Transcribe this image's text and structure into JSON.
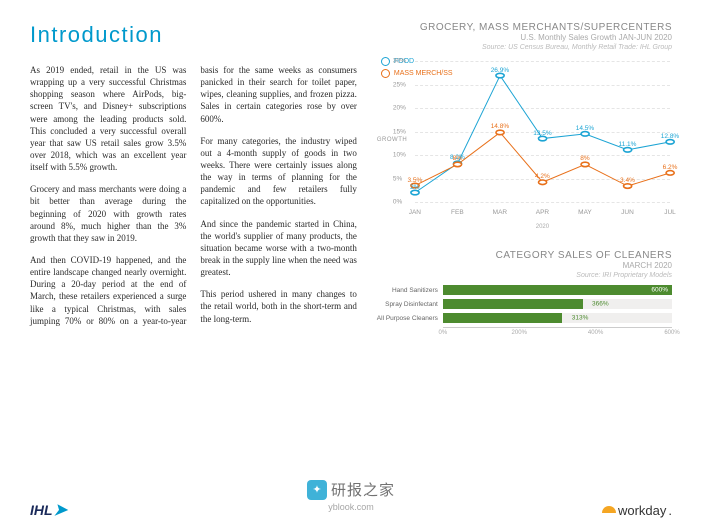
{
  "title": "Introduction",
  "paragraphs": [
    "As 2019 ended, retail in the US was wrapping up a very successful Christmas shopping season where AirPods, big-screen TV's, and Disney+ subscriptions were among the leading products sold. This concluded a very successful overall year that saw US retail sales grow 3.5% over 2018, which was an excellent year itself with 5.5% growth.",
    "Grocery and mass merchants were doing a bit better than average during the beginning of 2020 with growth rates around 8%, much higher than the 3% growth that they saw in 2019.",
    "And then COVID-19 happened, and the entire landscape changed nearly overnight. During a 20-day period at the end of March, these retailers experienced a surge like a typical Christmas, with sales jumping 70% or 80% on a year-to-year basis for the same weeks as consumers panicked in their search for toilet paper, wipes, cleaning supplies, and frozen pizza. Sales in certain categories rose by over 600%.",
    "For many categories, the industry wiped out a 4-month supply of goods in two weeks. There were certainly issues along the way in terms of planning for the pandemic and few retailers fully capitalized on the opportunities.",
    "And since the pandemic started in China, the world's supplier of many products, the situation became worse with a two-month break in the supply line when the need was greatest.",
    "This period ushered in many changes to the retail world, both in the short-term and the long-term."
  ],
  "chart1": {
    "title": "GROCERY, MASS MERCHANTS/SUPERCENTERS",
    "subtitle": "U.S. Monthly Sales Growth JAN-JUN 2020",
    "source": "Source: US Census Bureau, Monthly Retail Trade: IHL Group",
    "type": "line",
    "y_label": "GROWTH",
    "ylim": [
      0,
      30
    ],
    "ytick_step": 5,
    "categories": [
      "JAN",
      "FEB",
      "MAR",
      "APR",
      "MAY",
      "JUN",
      "JUL"
    ],
    "x_title": "2020",
    "series": [
      {
        "name": "FOOD",
        "color": "#1ca4d4",
        "values": [
          2,
          8.2,
          26.9,
          13.5,
          14.5,
          11.1,
          12.8
        ],
        "labels": [
          "2%",
          "8.2%",
          "26.9%",
          "13.5%",
          "14.5%",
          "11.1%",
          "12.8%"
        ]
      },
      {
        "name": "MASS MERCH/SS",
        "color": "#e8701a",
        "values": [
          3.5,
          8,
          14.8,
          4.2,
          8,
          3.4,
          6.2
        ],
        "labels": [
          "3.5%",
          "8%",
          "14.8%",
          "4.2%",
          "8%",
          "3.4%",
          "6.2%"
        ]
      }
    ],
    "background_color": "#ffffff",
    "grid_color": "#e5e5e5",
    "marker": "circle"
  },
  "chart2": {
    "title": "CATEGORY SALES OF CLEANERS",
    "subtitle": "MARCH 2020",
    "source": "Source: IRI Proprietary Models",
    "type": "bar-horizontal",
    "xlim": [
      0,
      600
    ],
    "xtick_step": 200,
    "bar_color": "#4d8b2f",
    "background_color": "#f0efee",
    "items": [
      {
        "label": "Hand Sanitizers",
        "value": 600,
        "display": "600%"
      },
      {
        "label": "Spray Disinfectant",
        "value": 366,
        "display": "366%"
      },
      {
        "label": "All Purpose Cleaners",
        "value": 313,
        "display": "313%"
      }
    ]
  },
  "footer": {
    "ihl": "IHL",
    "watermark_text": "研报之家",
    "watermark_url": "yblook.com",
    "workday": "workday"
  }
}
